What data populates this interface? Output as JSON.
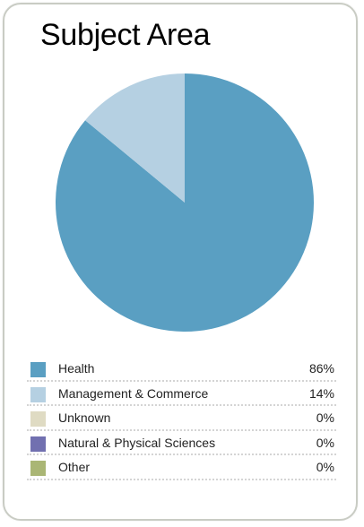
{
  "chart_data": {
    "type": "pie",
    "title": "Subject Area",
    "slices": [
      {
        "label": "Health",
        "value": 86,
        "display": "86%",
        "color": "#5a9fc2"
      },
      {
        "label": "Management & Commerce",
        "value": 14,
        "display": "14%",
        "color": "#b5d0e2"
      },
      {
        "label": "Unknown",
        "value": 0,
        "display": "0%",
        "color": "#dfdbc3"
      },
      {
        "label": "Natural & Physical Sciences",
        "value": 0,
        "display": "0%",
        "color": "#7170b0"
      },
      {
        "label": "Other",
        "value": 0,
        "display": "0%",
        "color": "#aab675"
      }
    ],
    "legend_position": "bottom"
  }
}
